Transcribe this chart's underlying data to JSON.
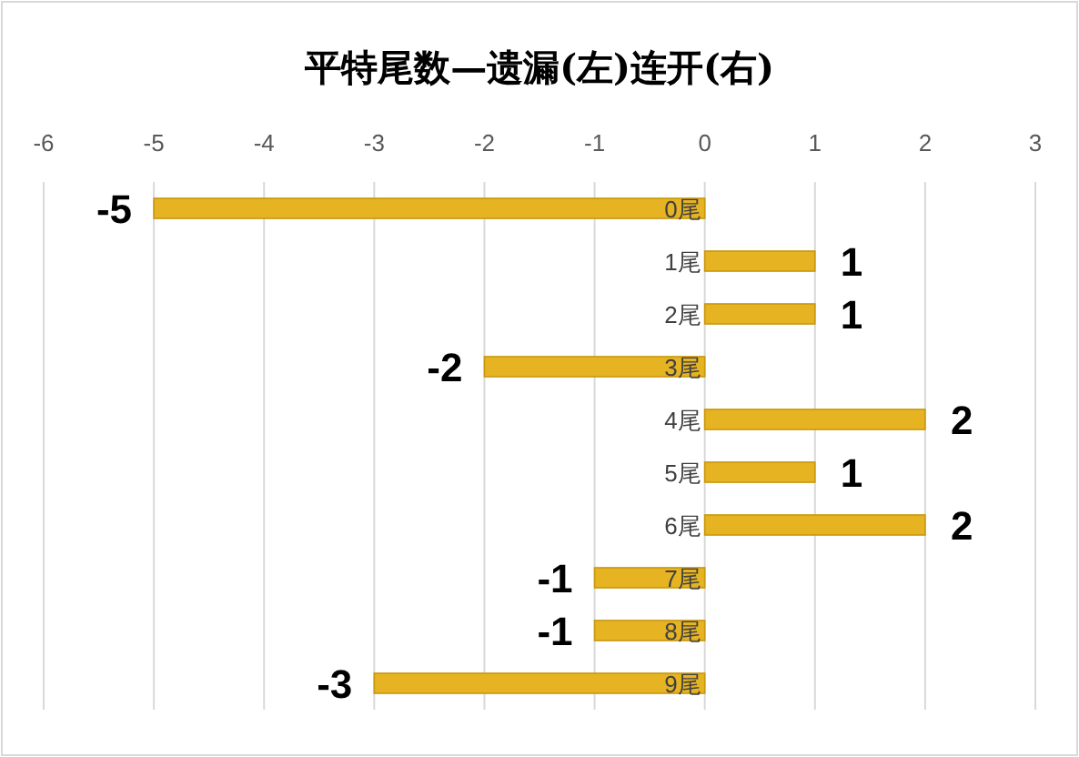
{
  "chart_data": {
    "type": "bar",
    "title": "平特尾数—遗漏(左)连开(右)",
    "orientation": "horizontal",
    "categories": [
      "0尾",
      "1尾",
      "2尾",
      "3尾",
      "4尾",
      "5尾",
      "6尾",
      "7尾",
      "8尾",
      "9尾"
    ],
    "values": [
      -5,
      1,
      1,
      -2,
      2,
      1,
      2,
      -1,
      -1,
      -3
    ],
    "color": "#e6b422",
    "xlim": [
      -6,
      3
    ],
    "xticks": [
      -6,
      -5,
      -4,
      -3,
      -2,
      -1,
      0,
      1,
      2,
      3
    ],
    "grid": "x",
    "data_labels": true
  }
}
